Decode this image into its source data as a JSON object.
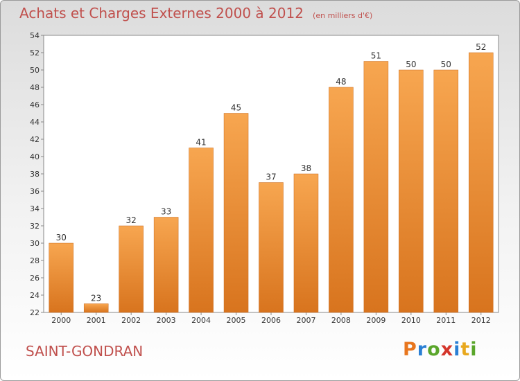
{
  "header": {
    "title": "Achats et Charges Externes 2000 à 2012",
    "unit": "(en milliers d'€)"
  },
  "footer": {
    "place": "SAINT-GONDRAN",
    "logo": "Proxiti"
  },
  "colors": {
    "title": "#c0504d",
    "bar_light": "#f7a650",
    "bar_dark": "#d8741e"
  },
  "chart_data": {
    "type": "bar",
    "categories": [
      "2000",
      "2001",
      "2002",
      "2003",
      "2004",
      "2005",
      "2006",
      "2007",
      "2008",
      "2009",
      "2010",
      "2011",
      "2012"
    ],
    "values": [
      30,
      23,
      32,
      33,
      41,
      45,
      37,
      38,
      48,
      51,
      50,
      50,
      52
    ],
    "ylim": [
      22,
      54
    ],
    "yticks": [
      22,
      24,
      26,
      28,
      30,
      32,
      34,
      36,
      38,
      40,
      42,
      44,
      46,
      48,
      50,
      52,
      54
    ],
    "grid": false,
    "data_labels": true
  }
}
